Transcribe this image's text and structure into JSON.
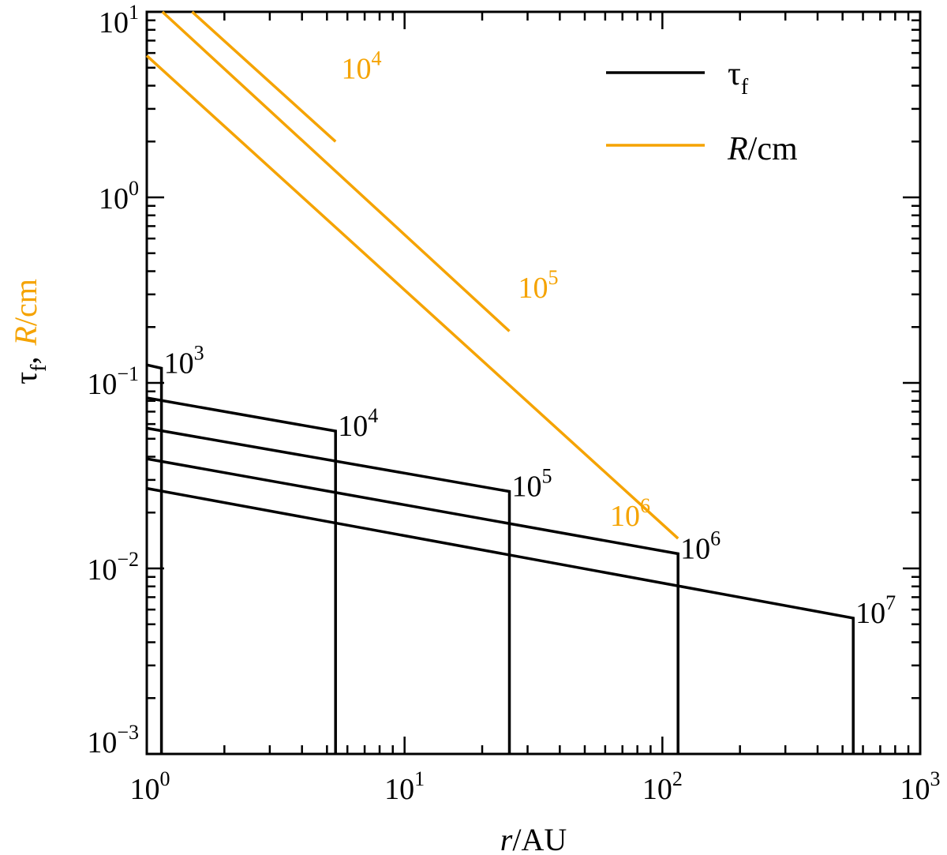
{
  "chart_data": {
    "type": "line",
    "xscale": "log",
    "yscale": "log",
    "xlim": [
      1,
      1000
    ],
    "ylim": [
      0.001,
      10
    ],
    "xlabel": {
      "italic": "r",
      "rest": "/AU"
    },
    "ylabel": {
      "tau": "τ",
      "tau_sub": "f",
      "sep": ",",
      "R": "R",
      "R_rest": "/cm"
    },
    "x_ticks": [
      {
        "value": 1,
        "base": "10",
        "exp": "0"
      },
      {
        "value": 10,
        "base": "10",
        "exp": "1"
      },
      {
        "value": 100,
        "base": "10",
        "exp": "2"
      },
      {
        "value": 1000,
        "base": "10",
        "exp": "3"
      }
    ],
    "y_ticks": [
      {
        "value": 0.001,
        "base": "10",
        "exp": "−3"
      },
      {
        "value": 0.01,
        "base": "10",
        "exp": "−2"
      },
      {
        "value": 0.1,
        "base": "10",
        "exp": "−1"
      },
      {
        "value": 1,
        "base": "10",
        "exp": "0"
      },
      {
        "value": 10,
        "base": "10",
        "exp": "1"
      }
    ],
    "legend": {
      "position": "top-right",
      "entries": [
        {
          "label": "τ",
          "sub": "f",
          "color": "#000000"
        },
        {
          "label_italic": "R",
          "label_rest": "/cm",
          "color": "#f5a300"
        }
      ]
    },
    "colors": {
      "tau": "#000000",
      "R": "#f5a300"
    },
    "tau_f_series": [
      {
        "label_base": "10",
        "label_exp": "3",
        "points": [
          [
            1.0,
            0.125
          ],
          [
            1.14,
            0.12
          ],
          [
            1.14,
            0.001
          ]
        ]
      },
      {
        "label_base": "10",
        "label_exp": "4",
        "points": [
          [
            1.0,
            0.083
          ],
          [
            5.4,
            0.055
          ],
          [
            5.4,
            0.001
          ]
        ]
      },
      {
        "label_base": "10",
        "label_exp": "5",
        "points": [
          [
            1.0,
            0.057
          ],
          [
            25.5,
            0.026
          ],
          [
            25.5,
            0.001
          ]
        ]
      },
      {
        "label_base": "10",
        "label_exp": "6",
        "points": [
          [
            1.0,
            0.039
          ],
          [
            115,
            0.012
          ],
          [
            115,
            0.001
          ]
        ]
      },
      {
        "label_base": "10",
        "label_exp": "7",
        "points": [
          [
            1.0,
            0.027
          ],
          [
            550,
            0.0054
          ],
          [
            550,
            0.001
          ]
        ]
      }
    ],
    "R_series": [
      {
        "label_base": "10",
        "label_exp": "4",
        "points": [
          [
            1.5,
            10.0
          ],
          [
            5.4,
            2.0
          ]
        ]
      },
      {
        "label_base": "10",
        "label_exp": "5",
        "points": [
          [
            1.15,
            10.0
          ],
          [
            25.5,
            0.19
          ]
        ]
      },
      {
        "label_base": "10",
        "label_exp": "6",
        "points": [
          [
            1.0,
            5.8
          ],
          [
            115,
            0.0145
          ]
        ]
      }
    ],
    "R_label_positions": [
      {
        "x": 6.8,
        "y": 5.0
      },
      {
        "x": 33,
        "y": 0.33
      },
      {
        "x": 75,
        "y": 0.0195
      }
    ]
  }
}
